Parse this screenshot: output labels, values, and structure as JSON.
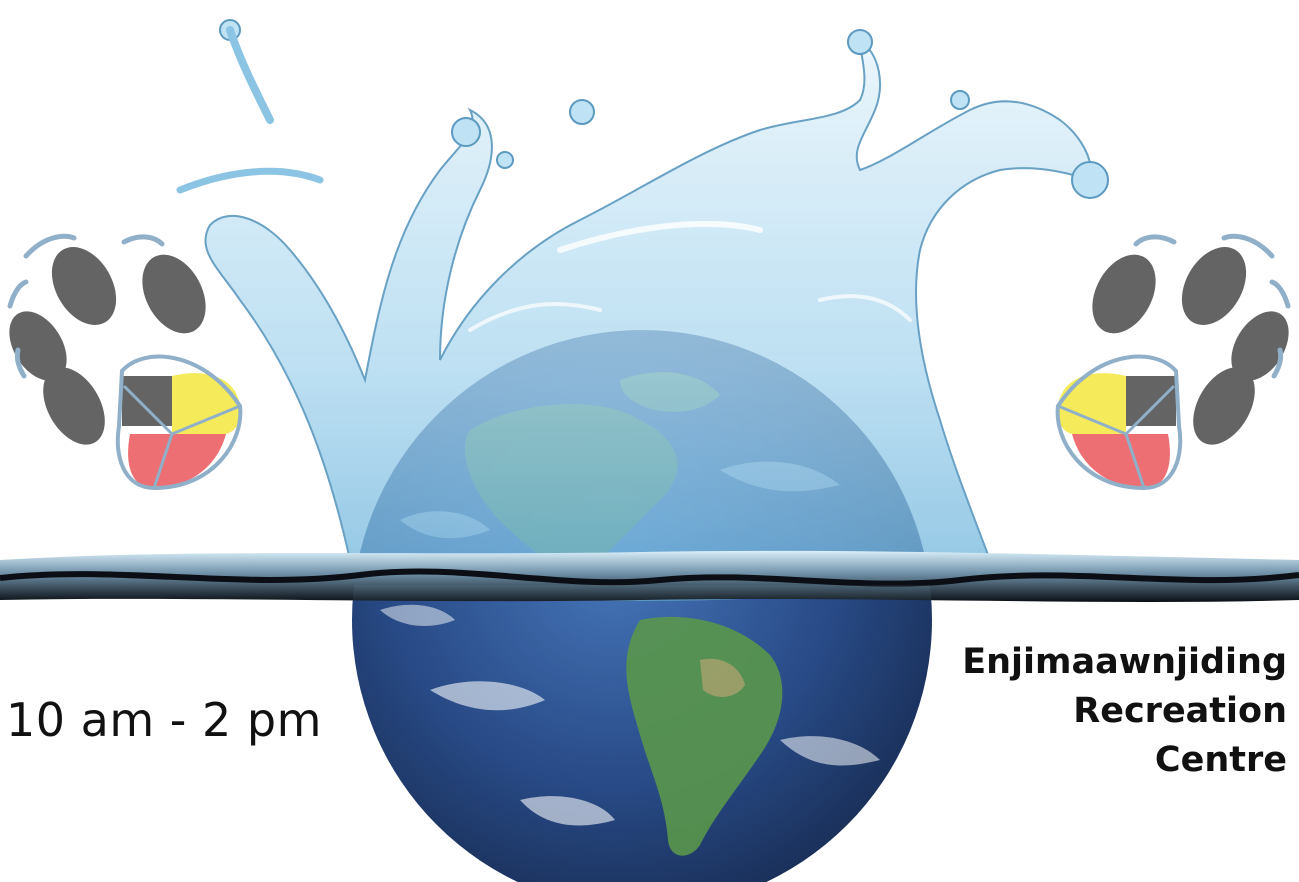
{
  "event": {
    "time": "10 am - 2 pm",
    "location_lines": [
      "Enjimaawnjiding",
      "Recreation",
      "Centre"
    ]
  },
  "colors": {
    "paw_grey": "#646464",
    "paw_yellow": "#f4ea5a",
    "paw_red": "#ee6f73",
    "paw_outline": "#8fb0c8",
    "water_blue": "#9fcde8",
    "ocean_blue": "#1f3f7e",
    "land_green": "#4f8b3a",
    "title_blue": "#3a8ed8"
  },
  "icons": {
    "left_paw": "medicine-wheel-paw-icon",
    "right_paw": "medicine-wheel-paw-icon",
    "globe": "earth-globe-illustration",
    "splash": "water-splash-illustration"
  }
}
